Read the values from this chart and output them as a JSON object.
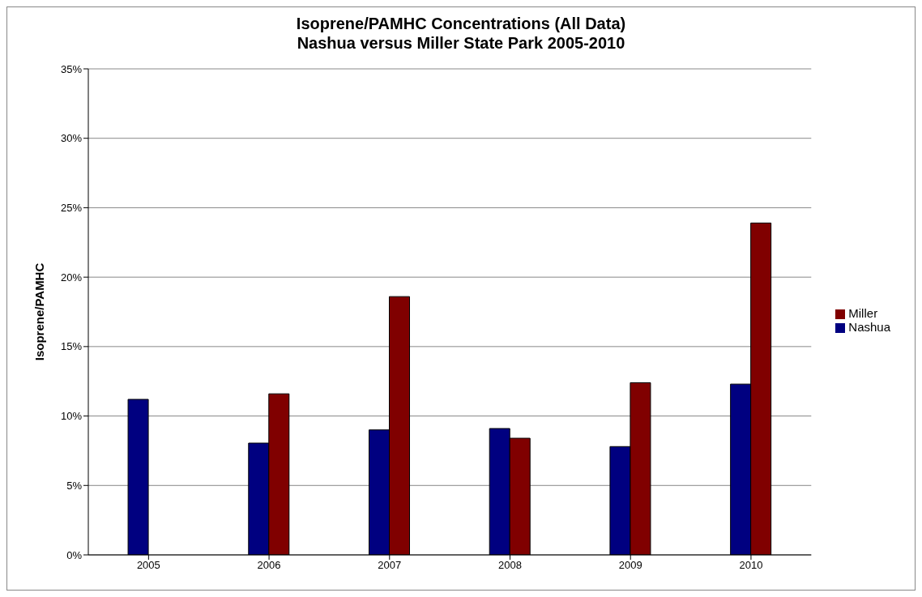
{
  "chart_data": {
    "type": "bar",
    "title": "Isoprene/PAMHC Concentrations (All Data)",
    "subtitle": "Nashua versus Miller State Park 2005-2010",
    "ylabel": "Isoprene/PAMHC",
    "categories": [
      "2005",
      "2006",
      "2007",
      "2008",
      "2009",
      "2010"
    ],
    "series": [
      {
        "name": "Nashua",
        "color": "#000080",
        "values": [
          11.2,
          8.05,
          9.0,
          9.1,
          7.8,
          12.3
        ]
      },
      {
        "name": "Miller",
        "color": "#800000",
        "values": [
          null,
          11.6,
          18.6,
          8.4,
          12.4,
          23.9
        ]
      }
    ],
    "ylim": [
      0,
      35
    ],
    "yticks": [
      {
        "value": 0,
        "label": "0%"
      },
      {
        "value": 5,
        "label": "5%"
      },
      {
        "value": 10,
        "label": "10%"
      },
      {
        "value": 15,
        "label": "15%"
      },
      {
        "value": 20,
        "label": "20%"
      },
      {
        "value": 25,
        "label": "25%"
      },
      {
        "value": 30,
        "label": "30%"
      },
      {
        "value": 35,
        "label": "35%"
      }
    ],
    "grid": "y",
    "legend": "right"
  }
}
